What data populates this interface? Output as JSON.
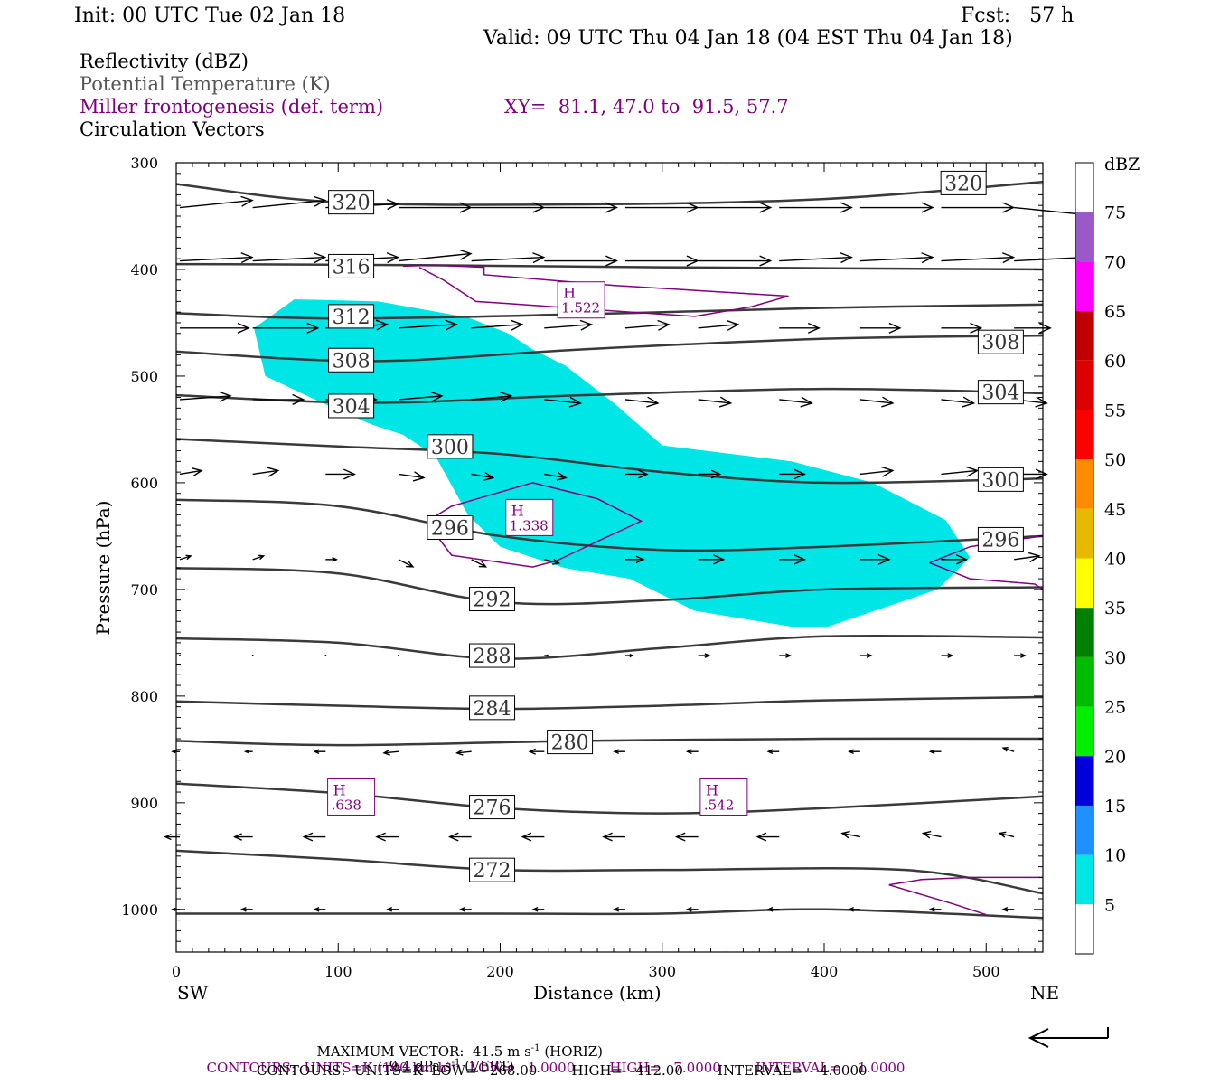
{
  "header": {
    "init": "Init: 00 UTC Tue 02 Jan 18",
    "fcst": "Fcst:   57 h",
    "valid": "Valid: 09 UTC Thu 04 Jan 18 (04 EST Thu 04 Jan 18)"
  },
  "legend": {
    "reflectivity": "Reflectivity (dBZ)",
    "theta": "Potential Temperature (K)",
    "frontogenesis": "Miller frontogenesis (def. term)",
    "xy": "XY=  81.1, 47.0 to  91.5, 57.7",
    "vectors": "Circulation Vectors"
  },
  "colors": {
    "reflectivity_fill": "#00e6e6",
    "theta_line": "#3a3a3a",
    "frontogenesis": "#800080",
    "theta_text": "#555555"
  },
  "colorbar": {
    "title": "dBZ",
    "labels": [
      "75",
      "70",
      "65",
      "60",
      "55",
      "50",
      "45",
      "40",
      "35",
      "30",
      "25",
      "20",
      "15",
      "10",
      "5"
    ],
    "colors": [
      "#ffffff",
      "#9b59c8",
      "#ff00ff",
      "#c00000",
      "#dd0000",
      "#ff0000",
      "#ff8c00",
      "#e6b800",
      "#ffff00",
      "#008000",
      "#00bb00",
      "#00ee00",
      "#0000dd",
      "#1e90ff",
      "#00e6e6",
      "#ffffff"
    ]
  },
  "axes": {
    "ylabel": "Pressure (hPa)",
    "xlabel": "Distance (km)",
    "left_end": "SW",
    "right_end": "NE"
  },
  "footer": {
    "max_vector": "MAXIMUM VECTOR:  41.5 m s",
    "max_vector_horiz": "(HORIZ)",
    "max_vector_vert": "9.4 dPa s",
    "max_vector_vert_unit": "(VERT)",
    "contours_frontogenesis": "CONTOURS:  UNITS=K (100 km h)",
    "contours_frontogenesis_rest": "LOW=   1.0000        HIGH=   7.0000        INTERVAL=    1.0000",
    "contours_theta": "CONTOURS:  UNITS=K  LOW=   268.00        HIGH=   412.00        INTERVAL=    4.0000",
    "superscript_minus1": "-1"
  },
  "chart_data": {
    "type": "cross-section",
    "x_range_km": [
      0,
      535
    ],
    "y_range_hpa": [
      300,
      1040
    ],
    "y_scale": "linear-in-pressure",
    "x_ticks": [
      "0",
      "100",
      "200",
      "300",
      "400",
      "500"
    ],
    "y_ticks": [
      "300",
      "400",
      "500",
      "600",
      "700",
      "800",
      "900",
      "1000"
    ],
    "theta_contours": [
      {
        "label": "320",
        "points": [
          [
            0,
            320
          ],
          [
            100,
            337
          ],
          [
            250,
            339
          ],
          [
            400,
            334
          ],
          [
            535,
            318
          ]
        ],
        "label_at": [
          [
            108,
            337
          ],
          [
            486,
            319
          ]
        ]
      },
      {
        "label": "316",
        "points": [
          [
            0,
            395
          ],
          [
            150,
            396
          ],
          [
            300,
            398
          ],
          [
            535,
            400
          ]
        ],
        "label_at": [
          [
            108,
            397
          ]
        ]
      },
      {
        "label": "312",
        "points": [
          [
            0,
            441
          ],
          [
            100,
            446
          ],
          [
            250,
            442
          ],
          [
            400,
            436
          ],
          [
            535,
            433
          ]
        ],
        "label_at": [
          [
            108,
            444
          ]
        ]
      },
      {
        "label": "308",
        "points": [
          [
            0,
            477
          ],
          [
            120,
            486
          ],
          [
            250,
            475
          ],
          [
            400,
            465
          ],
          [
            535,
            462
          ]
        ],
        "label_at": [
          [
            108,
            485
          ],
          [
            509,
            468
          ]
        ]
      },
      {
        "label": "304",
        "points": [
          [
            0,
            518
          ],
          [
            120,
            525
          ],
          [
            250,
            518
          ],
          [
            400,
            512
          ],
          [
            535,
            516
          ]
        ],
        "label_at": [
          [
            108,
            528
          ],
          [
            509,
            515
          ]
        ]
      },
      {
        "label": "300",
        "points": [
          [
            0,
            559
          ],
          [
            100,
            566
          ],
          [
            200,
            573
          ],
          [
            300,
            590
          ],
          [
            400,
            600
          ],
          [
            535,
            596
          ]
        ],
        "label_at": [
          [
            169,
            566
          ],
          [
            509,
            597
          ]
        ]
      },
      {
        "label": "296",
        "points": [
          [
            0,
            616
          ],
          [
            100,
            622
          ],
          [
            200,
            650
          ],
          [
            300,
            663
          ],
          [
            400,
            660
          ],
          [
            535,
            650
          ]
        ],
        "label_at": [
          [
            169,
            642
          ],
          [
            509,
            653
          ]
        ]
      },
      {
        "label": "292",
        "points": [
          [
            0,
            680
          ],
          [
            100,
            685
          ],
          [
            200,
            712
          ],
          [
            300,
            710
          ],
          [
            400,
            700
          ],
          [
            535,
            698
          ]
        ],
        "label_at": [
          [
            195,
            709
          ]
        ]
      },
      {
        "label": "288",
        "points": [
          [
            0,
            746
          ],
          [
            100,
            750
          ],
          [
            200,
            765
          ],
          [
            300,
            755
          ],
          [
            400,
            744
          ],
          [
            535,
            745
          ]
        ],
        "label_at": [
          [
            195,
            762
          ]
        ]
      },
      {
        "label": "284",
        "points": [
          [
            0,
            805
          ],
          [
            100,
            809
          ],
          [
            200,
            812
          ],
          [
            300,
            809
          ],
          [
            400,
            804
          ],
          [
            535,
            801
          ]
        ],
        "label_at": [
          [
            195,
            811
          ]
        ]
      },
      {
        "label": "280",
        "points": [
          [
            0,
            842
          ],
          [
            100,
            846
          ],
          [
            250,
            842
          ],
          [
            400,
            840
          ],
          [
            535,
            840
          ]
        ],
        "label_at": [
          [
            243,
            843
          ]
        ]
      },
      {
        "label": "276",
        "points": [
          [
            0,
            882
          ],
          [
            100,
            891
          ],
          [
            200,
            905
          ],
          [
            300,
            910
          ],
          [
            400,
            905
          ],
          [
            535,
            894
          ]
        ],
        "label_at": [
          [
            195,
            904
          ]
        ]
      },
      {
        "label": "272",
        "points": [
          [
            0,
            945
          ],
          [
            100,
            953
          ],
          [
            200,
            963
          ],
          [
            300,
            963
          ],
          [
            450,
            963
          ],
          [
            535,
            985
          ]
        ],
        "label_at": [
          [
            195,
            963
          ]
        ]
      },
      {
        "label": "",
        "points": [
          [
            0,
            1004
          ],
          [
            200,
            1004
          ],
          [
            300,
            1004
          ],
          [
            400,
            1000
          ],
          [
            535,
            1008
          ]
        ],
        "label_at": []
      }
    ],
    "reflectivity_5dbz_region": [
      [
        48,
        455
      ],
      [
        73,
        428
      ],
      [
        125,
        430
      ],
      [
        180,
        445
      ],
      [
        205,
        460
      ],
      [
        220,
        475
      ],
      [
        240,
        490
      ],
      [
        270,
        525
      ],
      [
        300,
        565
      ],
      [
        380,
        580
      ],
      [
        430,
        600
      ],
      [
        475,
        635
      ],
      [
        490,
        670
      ],
      [
        470,
        700
      ],
      [
        400,
        736
      ],
      [
        380,
        735
      ],
      [
        320,
        720
      ],
      [
        280,
        690
      ],
      [
        240,
        680
      ],
      [
        200,
        660
      ],
      [
        180,
        630
      ],
      [
        160,
        575
      ],
      [
        140,
        555
      ],
      [
        120,
        545
      ],
      [
        90,
        525
      ],
      [
        55,
        500
      ]
    ],
    "frontogenesis_highs": [
      {
        "label": "H",
        "value": "1.522",
        "at": [
          250,
          432
        ]
      },
      {
        "label": "H",
        "value": "1.338",
        "at": [
          218,
          636
        ]
      },
      {
        "label": "H",
        "value": ".638",
        "at": [
          108,
          898
        ]
      },
      {
        "label": "H",
        "value": ".542",
        "at": [
          338,
          898
        ]
      }
    ],
    "frontogenesis_contours": [
      [
        [
          140,
          397
        ],
        [
          160,
          396
        ],
        [
          190,
          398
        ],
        [
          190,
          405
        ],
        [
          270,
          415
        ],
        [
          378,
          425
        ],
        [
          355,
          435
        ],
        [
          320,
          444
        ],
        [
          280,
          440
        ],
        [
          205,
          432
        ],
        [
          185,
          430
        ],
        [
          165,
          410
        ],
        [
          150,
          398
        ]
      ],
      [
        [
          155,
          636
        ],
        [
          170,
          622
        ],
        [
          220,
          600
        ],
        [
          260,
          615
        ],
        [
          287,
          636
        ],
        [
          260,
          655
        ],
        [
          235,
          673
        ],
        [
          220,
          679
        ],
        [
          170,
          668
        ],
        [
          160,
          648
        ],
        [
          155,
          636
        ]
      ],
      [
        [
          465,
          675
        ],
        [
          490,
          660
        ],
        [
          510,
          655
        ],
        [
          535,
          650
        ]
      ],
      [
        [
          465,
          675
        ],
        [
          490,
          690
        ],
        [
          530,
          695
        ],
        [
          535,
          700
        ]
      ],
      [
        [
          440,
          977
        ],
        [
          460,
          972
        ],
        [
          490,
          970
        ],
        [
          535,
          970
        ]
      ],
      [
        [
          440,
          977
        ],
        [
          480,
          995
        ],
        [
          500,
          1005
        ]
      ]
    ],
    "vector_rows": [
      {
        "p": 342,
        "u": [
          1,
          1,
          1,
          1,
          1,
          1,
          1,
          1,
          1,
          1,
          1,
          1
        ],
        "v": [
          0.1,
          0.1,
          0.05,
          0,
          0,
          0,
          0,
          0,
          0,
          0,
          0,
          -0.1
        ]
      },
      {
        "p": 392,
        "u": [
          1,
          1,
          1,
          1,
          1,
          1,
          1,
          1,
          1,
          1,
          1,
          1
        ],
        "v": [
          0.05,
          0.05,
          0.05,
          0.1,
          0.05,
          0,
          0,
          0,
          0.05,
          0.05,
          0.05,
          0.05
        ]
      },
      {
        "p": 455,
        "u": [
          0.95,
          0.9,
          0.85,
          0.8,
          0.7,
          0.65,
          0.6,
          0.55,
          0.55,
          0.55,
          0.55,
          0.5
        ],
        "v": [
          0,
          0,
          0.05,
          0.05,
          0.05,
          0.05,
          0.05,
          0.05,
          0,
          0,
          0,
          0
        ]
      },
      {
        "p": 522,
        "u": [
          0.7,
          0.7,
          0.7,
          0.6,
          0.55,
          0.5,
          0.45,
          0.45,
          0.45,
          0.45,
          0.45,
          0.45
        ],
        "v": [
          0.05,
          0,
          0,
          0.05,
          0.05,
          -0.05,
          -0.05,
          -0.05,
          -0.05,
          -0.05,
          -0.05,
          -0.05
        ]
      },
      {
        "p": 592,
        "u": [
          0.3,
          0.35,
          0.4,
          0.35,
          0.3,
          0.3,
          0.3,
          0.3,
          0.35,
          0.45,
          0.5,
          0.45
        ],
        "v": [
          0.05,
          0.05,
          0,
          -0.05,
          -0.05,
          -0.05,
          0,
          0,
          0,
          0.05,
          0.05,
          0
        ]
      },
      {
        "p": 672,
        "u": [
          0.15,
          0.15,
          0.15,
          0.2,
          0.2,
          0.2,
          0.25,
          0.35,
          0.35,
          0.4,
          0.35,
          0.35
        ],
        "v": [
          0.05,
          0.05,
          0,
          -0.1,
          -0.1,
          -0.05,
          0,
          0,
          0,
          0,
          0,
          0.05
        ]
      },
      {
        "p": 762,
        "u": [
          0.02,
          0.02,
          0.02,
          0.02,
          0.05,
          0.05,
          0.1,
          0.15,
          0.15,
          0.15,
          0.15,
          0.15
        ],
        "v": [
          0,
          0,
          0,
          0,
          0,
          0,
          0,
          0,
          0,
          0,
          0,
          0
        ]
      },
      {
        "p": 852,
        "u": [
          -0.1,
          -0.1,
          -0.15,
          -0.2,
          -0.2,
          -0.2,
          -0.15,
          -0.15,
          -0.15,
          -0.15,
          -0.15,
          -0.15
        ],
        "v": [
          0,
          0,
          0,
          -0.02,
          -0.02,
          0,
          0,
          0,
          0,
          0,
          0,
          0.05
        ]
      },
      {
        "p": 932,
        "u": [
          -0.2,
          -0.25,
          -0.3,
          -0.3,
          -0.3,
          -0.3,
          -0.3,
          -0.3,
          -0.3,
          -0.25,
          -0.25,
          -0.2
        ],
        "v": [
          0,
          0,
          0,
          0,
          0,
          0,
          0,
          0,
          0,
          0.05,
          0.05,
          0.05
        ]
      },
      {
        "p": 1000,
        "u": [
          -0.1,
          -0.15,
          -0.15,
          -0.15,
          -0.15,
          -0.15,
          -0.15,
          -0.15,
          -0.15,
          -0.15,
          -0.15,
          -0.15
        ],
        "v": [
          0,
          0,
          0,
          0,
          0,
          0,
          0,
          0,
          0,
          0,
          0,
          0
        ]
      }
    ]
  }
}
